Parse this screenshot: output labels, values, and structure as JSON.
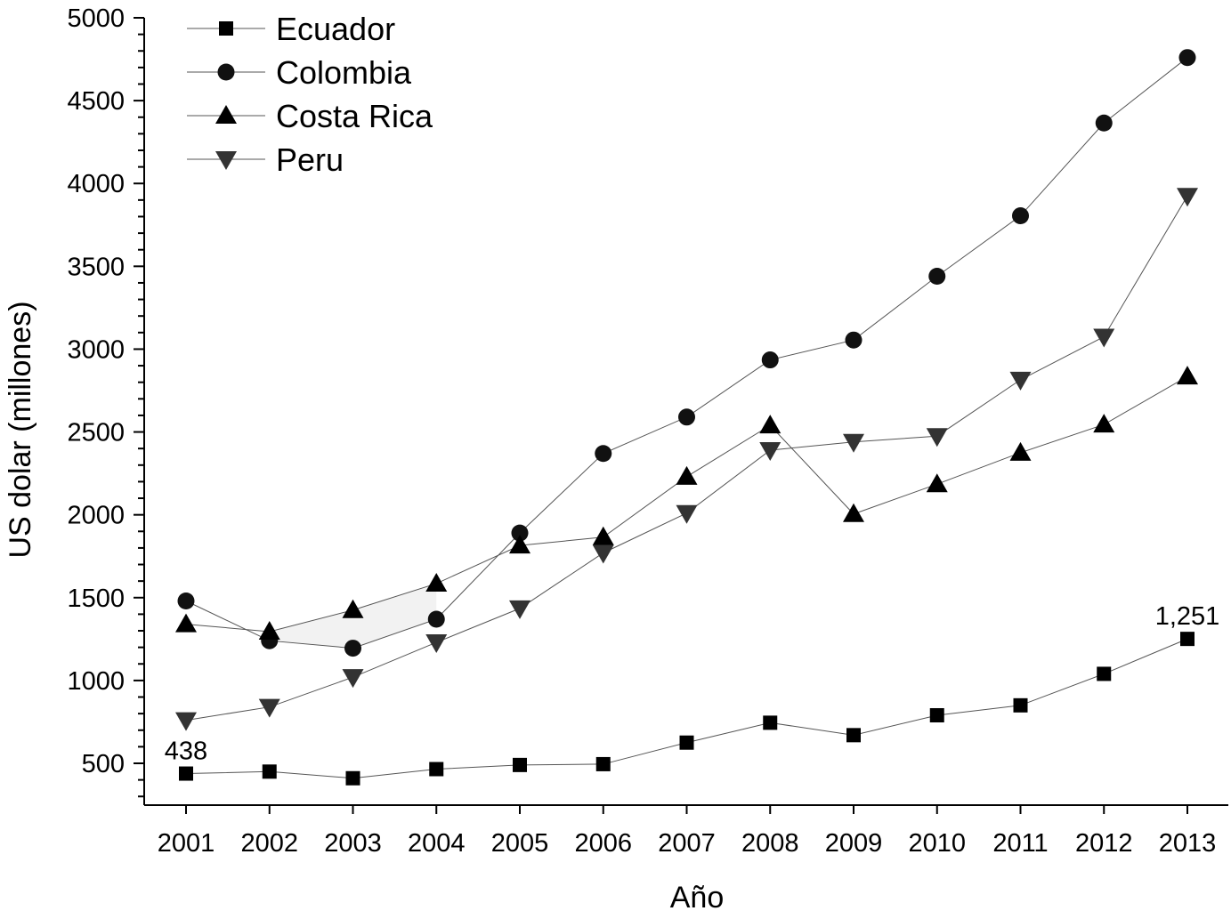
{
  "chart_data": {
    "type": "line",
    "xlabel": "Año",
    "ylabel": "US dolar (millones)",
    "x": [
      "2001",
      "2002",
      "2003",
      "2004",
      "2005",
      "2006",
      "2007",
      "2008",
      "2009",
      "2010",
      "2011",
      "2012",
      "2013"
    ],
    "ylim": [
      250,
      5000
    ],
    "yticks": [
      500,
      1000,
      1500,
      2000,
      2500,
      3000,
      3500,
      4000,
      4500,
      5000
    ],
    "grid": false,
    "legend_position": "top-left",
    "series": [
      {
        "name": "Ecuador",
        "marker": "square",
        "color": "#000000",
        "values": [
          438,
          450,
          410,
          465,
          490,
          495,
          625,
          745,
          670,
          790,
          850,
          1040,
          1251
        ]
      },
      {
        "name": "Colombia",
        "marker": "circle",
        "color": "#111111",
        "values": [
          1480,
          1240,
          1195,
          1370,
          1890,
          2370,
          2590,
          2935,
          3055,
          3440,
          3805,
          4365,
          4760
        ]
      },
      {
        "name": "Costa Rica",
        "marker": "triangle-up",
        "color": "#000000",
        "values": [
          1340,
          1295,
          1425,
          1585,
          1815,
          1865,
          2230,
          2540,
          2005,
          2185,
          2375,
          2545,
          2835
        ]
      },
      {
        "name": "Peru",
        "marker": "triangle-down",
        "color": "#333333",
        "values": [
          760,
          840,
          1020,
          1230,
          1435,
          1770,
          2010,
          2390,
          2440,
          2475,
          2815,
          3075,
          3925
        ]
      }
    ],
    "annotations": [
      {
        "series": "Ecuador",
        "index": 0,
        "text": "438"
      },
      {
        "series": "Ecuador",
        "index": 12,
        "text": "1,251"
      }
    ]
  }
}
